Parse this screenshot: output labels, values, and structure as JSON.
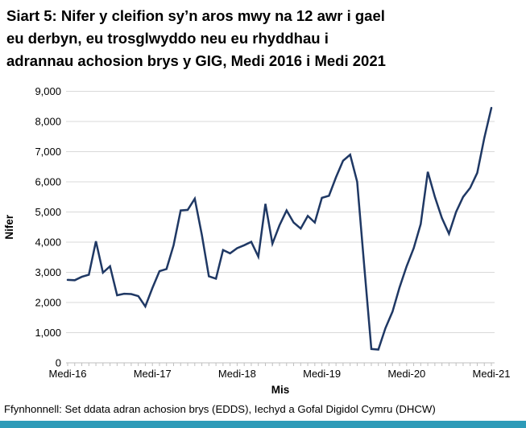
{
  "title": {
    "lines": [
      "Siart 5: Nifer y cleifion sy’n aros mwy na 12 awr i gael",
      "eu derbyn, eu trosglwyddo neu eu rhyddhau i",
      "adrannau achosion brys y GIG, Medi 2016 i Medi 2021"
    ]
  },
  "footer": {
    "source": "Ffynhonnell: Set ddata adran achosion brys (EDDS), Iechyd a Gofal Digidol Cymru (DHCW)"
  },
  "colors": {
    "line": "#1F3864",
    "grid": "#D9D9D9",
    "axis": "#BFBFBF",
    "text": "#000000",
    "bottom_bar": "#2E9BB8",
    "background": "#FFFFFF"
  },
  "chart_data": {
    "type": "line",
    "title": "Siart 5: Nifer y cleifion sy’n aros mwy na 12 awr i gael eu derbyn, eu trosglwyddo neu eu rhyddhau i adrannau achosion brys y GIG, Medi 2016 i Medi 2021",
    "xlabel": "Mis",
    "ylabel": "Nifer",
    "ylim": [
      0,
      9000
    ],
    "ytick_step": 1000,
    "grid": true,
    "legend": false,
    "x_start": "Medi 2016",
    "x_end": "Medi 2021",
    "x_frequency": "monthly",
    "y_tick_labels": [
      "0",
      "1,000",
      "2,000",
      "3,000",
      "4,000",
      "5,000",
      "6,000",
      "7,000",
      "8,000",
      "9,000"
    ],
    "x_tick_labels": [
      {
        "label": "Medi-16",
        "month_index": 0
      },
      {
        "label": "Medi-17",
        "month_index": 12
      },
      {
        "label": "Medi-18",
        "month_index": 24
      },
      {
        "label": "Medi-19",
        "month_index": 36
      },
      {
        "label": "Medi-20",
        "month_index": 48
      },
      {
        "label": "Medi-21",
        "month_index": 60
      }
    ],
    "series": [
      {
        "name": "Nifer y cleifion yn aros mwy na 12 awr",
        "values": [
          2750,
          2740,
          2850,
          2920,
          4030,
          2990,
          3200,
          2240,
          2290,
          2280,
          2210,
          1870,
          2480,
          3040,
          3110,
          3900,
          5050,
          5070,
          5440,
          4240,
          2870,
          2790,
          3740,
          3630,
          3800,
          3900,
          4010,
          3520,
          5270,
          3950,
          4560,
          5050,
          4650,
          4450,
          4870,
          4650,
          5470,
          5540,
          6150,
          6700,
          6900,
          6000,
          3200,
          460,
          440,
          1150,
          1700,
          2500,
          3200,
          3800,
          4600,
          6330,
          5500,
          4800,
          4280,
          5000,
          5500,
          5800,
          6300,
          7450,
          8450
        ]
      }
    ]
  }
}
